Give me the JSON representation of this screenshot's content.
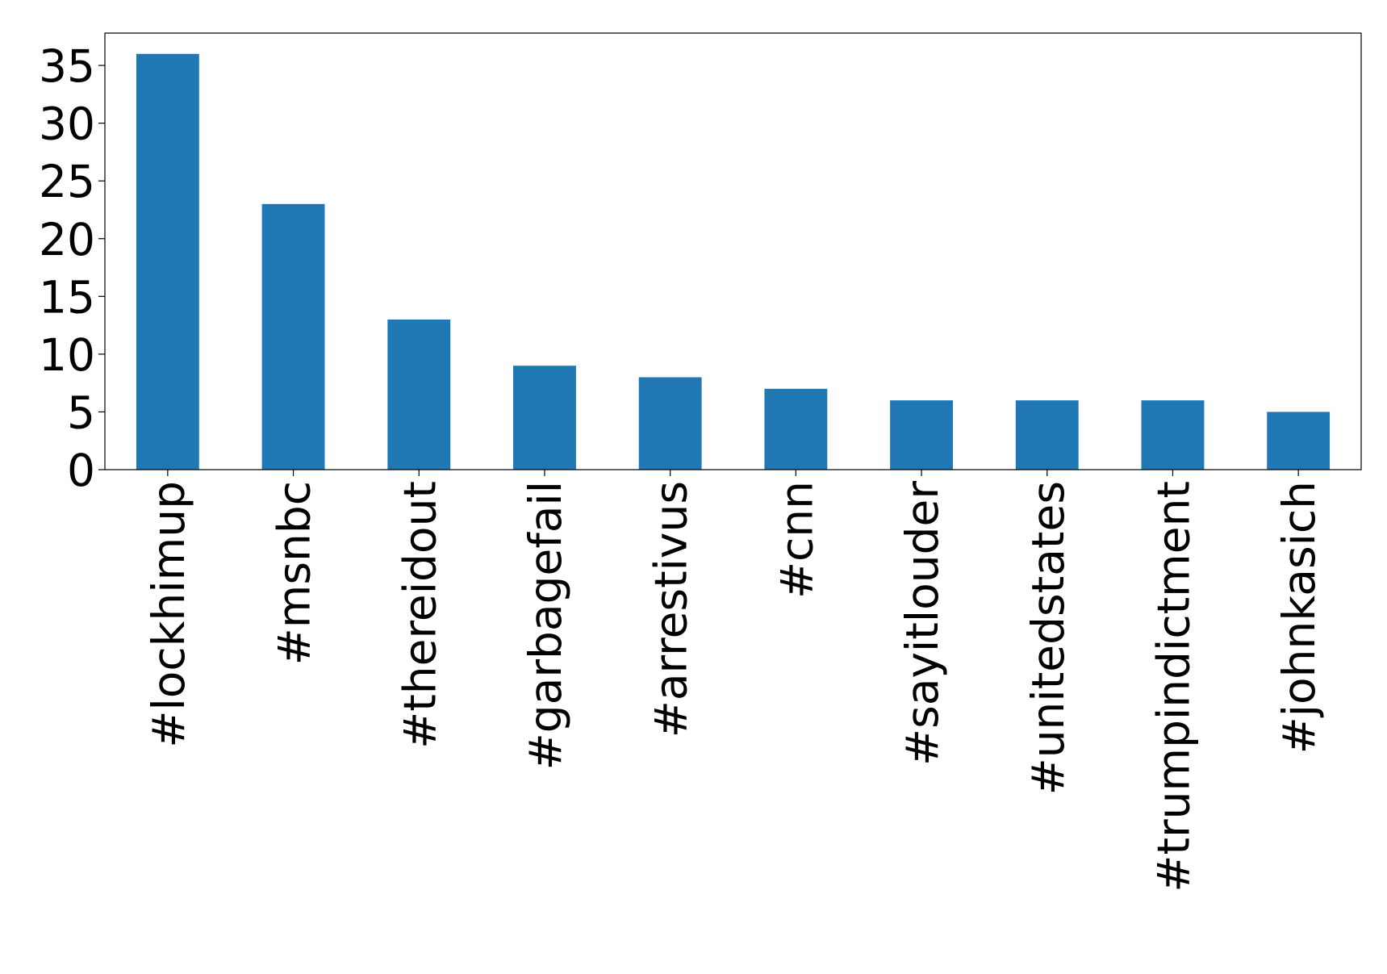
{
  "chart_data": {
    "type": "bar",
    "categories": [
      "#lockhimup",
      "#msnbc",
      "#thereidout",
      "#garbagefail",
      "#arrestivus",
      "#cnn",
      "#sayitlouder",
      "#unitedstates",
      "#trumpindictment",
      "#johnkasich"
    ],
    "values": [
      36,
      23,
      13,
      9,
      8,
      7,
      6,
      6,
      6,
      5
    ],
    "color": "#1f77b4",
    "ylim": [
      0,
      37.8
    ],
    "yticks": [
      0,
      5,
      10,
      15,
      20,
      25,
      30,
      35
    ],
    "grid": false
  }
}
